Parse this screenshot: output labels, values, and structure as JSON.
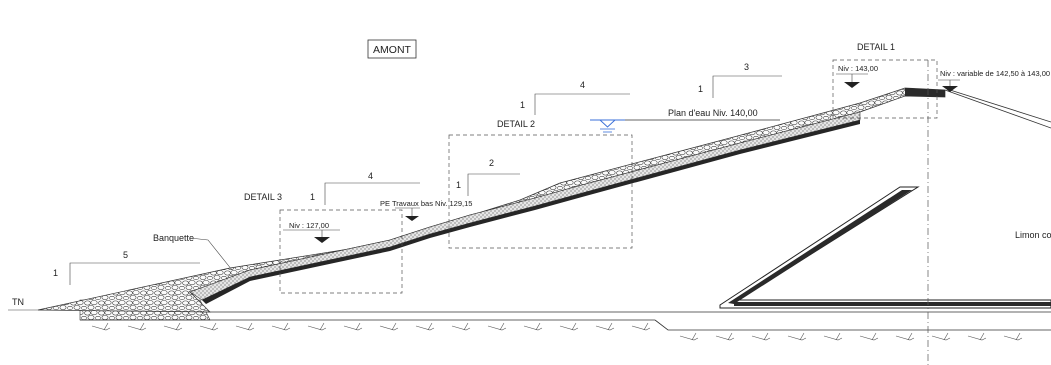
{
  "labels": {
    "amont": "AMONT",
    "detail1": "DETAIL 1",
    "detail2": "DETAIL 2",
    "detail3": "DETAIL 3",
    "plan_eau": "Plan d'eau Niv. 140,00",
    "niv143": "Niv : 143,00",
    "niv_variable": "Niv : variable de 142,50 à 143,00",
    "pe_travaux": "PE Travaux bas Niv. 129,15",
    "niv127": "Niv : 127,00",
    "banquette": "Banquette",
    "tn": "TN",
    "limon": "Limon co"
  },
  "slopes": {
    "s5": {
      "rise": "1",
      "run": "5"
    },
    "s4a": {
      "rise": "1",
      "run": "4"
    },
    "s2": {
      "rise": "1",
      "run": "2"
    },
    "s4b": {
      "rise": "1",
      "run": "4"
    },
    "s3": {
      "rise": "1",
      "run": "3"
    }
  },
  "colors": {
    "line": "#333333",
    "water": "#3a6fd8",
    "filter": "#222222"
  }
}
